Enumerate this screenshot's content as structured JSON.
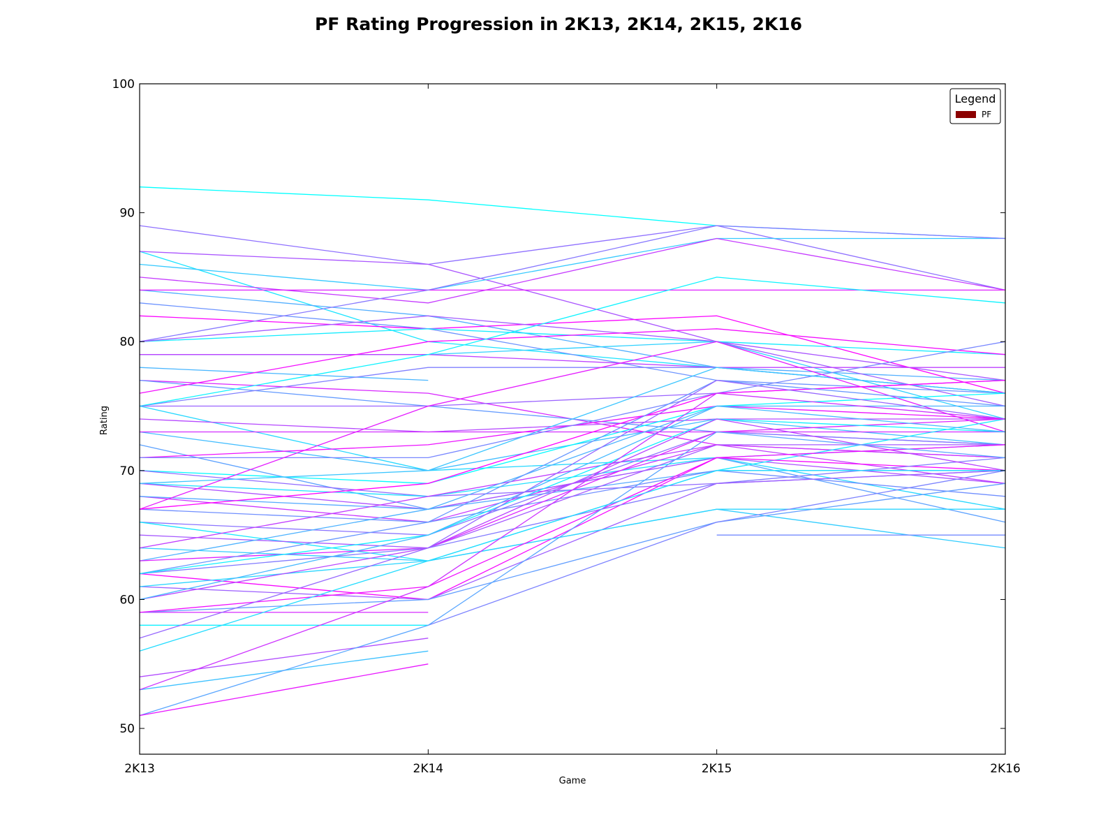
{
  "chart_data": {
    "type": "line",
    "title": "PF Rating Progression in 2K13, 2K14, 2K15, 2K16",
    "xlabel": "Game",
    "ylabel": "Rating",
    "categories": [
      "2K13",
      "2K14",
      "2K15",
      "2K16"
    ],
    "ylim": [
      48,
      100
    ],
    "yticks": [
      50,
      60,
      70,
      80,
      90,
      100
    ],
    "grid": false,
    "legend": {
      "title": "Legend",
      "placement": "top-right",
      "entries": [
        {
          "label": "PF",
          "color": "#8b0000"
        }
      ]
    },
    "colormap": [
      "#00ffff",
      "#ff00ff"
    ],
    "series": [
      {
        "values": [
          92,
          91,
          89,
          88
        ]
      },
      {
        "values": [
          89,
          86,
          89,
          84
        ]
      },
      {
        "values": [
          87,
          80,
          78,
          76
        ]
      },
      {
        "values": [
          87,
          86,
          80,
          77
        ]
      },
      {
        "values": [
          86,
          84,
          88,
          88
        ]
      },
      {
        "values": [
          85,
          83,
          88,
          84
        ]
      },
      {
        "values": [
          84,
          82,
          78,
          77
        ]
      },
      {
        "values": [
          84,
          84,
          84,
          84
        ]
      },
      {
        "values": [
          83,
          81,
          77,
          76
        ]
      },
      {
        "values": [
          82,
          81,
          82,
          76
        ]
      },
      {
        "values": [
          80,
          84,
          89,
          88
        ]
      },
      {
        "values": [
          80,
          81,
          80,
          79
        ]
      },
      {
        "values": [
          80,
          82,
          80,
          75
        ]
      },
      {
        "values": [
          79,
          79,
          80,
          74
        ]
      },
      {
        "values": [
          79,
          79,
          78,
          78
        ]
      },
      {
        "values": [
          78,
          77,
          null,
          null
        ]
      },
      {
        "values": [
          77,
          76,
          72,
          71
        ]
      },
      {
        "values": [
          77,
          75,
          73,
          72
        ]
      },
      {
        "values": [
          76,
          80,
          81,
          79
        ]
      },
      {
        "values": [
          75,
          78,
          78,
          76
        ]
      },
      {
        "values": [
          75,
          79,
          85,
          83
        ]
      },
      {
        "values": [
          75,
          75,
          76,
          77
        ]
      },
      {
        "values": [
          75,
          70,
          71,
          67
        ]
      },
      {
        "values": [
          74,
          73,
          74,
          74
        ]
      },
      {
        "values": [
          73,
          70,
          74,
          72
        ]
      },
      {
        "values": [
          73,
          73,
          73,
          73
        ]
      },
      {
        "values": [
          72,
          67,
          71,
          66
        ]
      },
      {
        "values": [
          71,
          72,
          75,
          74
        ]
      },
      {
        "values": [
          71,
          71,
          76,
          80
        ]
      },
      {
        "values": [
          70,
          69,
          75,
          76
        ]
      },
      {
        "values": [
          70,
          68,
          69,
          70
        ]
      },
      {
        "values": [
          69,
          68,
          71,
          72
        ]
      },
      {
        "values": [
          69,
          67,
          71,
          69
        ]
      },
      {
        "values": [
          69,
          70,
          78,
          76
        ]
      },
      {
        "values": [
          68,
          66,
          72,
          71
        ]
      },
      {
        "values": [
          68,
          67,
          70,
          70
        ]
      },
      {
        "values": [
          67,
          75,
          80,
          73
        ]
      },
      {
        "values": [
          67,
          66,
          70,
          68
        ]
      },
      {
        "values": [
          67,
          69,
          76,
          77
        ]
      },
      {
        "values": [
          66,
          65,
          73,
          72
        ]
      },
      {
        "values": [
          66,
          63,
          70,
          74
        ]
      },
      {
        "values": [
          65,
          64,
          72,
          72
        ]
      },
      {
        "values": [
          64,
          63,
          67,
          64
        ]
      },
      {
        "values": [
          64,
          68,
          72,
          69
        ]
      },
      {
        "values": [
          63,
          67,
          75,
          75
        ]
      },
      {
        "values": [
          63,
          64,
          73,
          74
        ]
      },
      {
        "values": [
          62,
          66,
          77,
          75
        ]
      },
      {
        "values": [
          62,
          60,
          71,
          70
        ]
      },
      {
        "values": [
          62,
          64,
          69,
          71
        ]
      },
      {
        "values": [
          62,
          65,
          74,
          73
        ]
      },
      {
        "values": [
          61,
          60,
          69,
          70
        ]
      },
      {
        "values": [
          61,
          63,
          67,
          67
        ]
      },
      {
        "values": [
          60,
          64,
          74,
          70
        ]
      },
      {
        "values": [
          60,
          65,
          75,
          73
        ]
      },
      {
        "values": [
          59,
          59,
          null,
          null
        ]
      },
      {
        "values": [
          59,
          60,
          66,
          69
        ]
      },
      {
        "values": [
          59,
          61,
          71,
          72
        ]
      },
      {
        "values": [
          58,
          58,
          66,
          70
        ]
      },
      {
        "values": [
          58,
          58,
          null,
          null
        ]
      },
      {
        "values": [
          57,
          64,
          77,
          74
        ]
      },
      {
        "values": [
          56,
          63,
          70,
          70
        ]
      },
      {
        "values": [
          54,
          57,
          null,
          null
        ]
      },
      {
        "values": [
          53,
          56,
          null,
          null
        ]
      },
      {
        "values": [
          53,
          61,
          76,
          74
        ]
      },
      {
        "values": [
          51,
          58,
          73,
          71
        ]
      },
      {
        "values": [
          51,
          55,
          null,
          null
        ]
      },
      {
        "values": [
          null,
          null,
          65,
          65
        ]
      }
    ]
  }
}
